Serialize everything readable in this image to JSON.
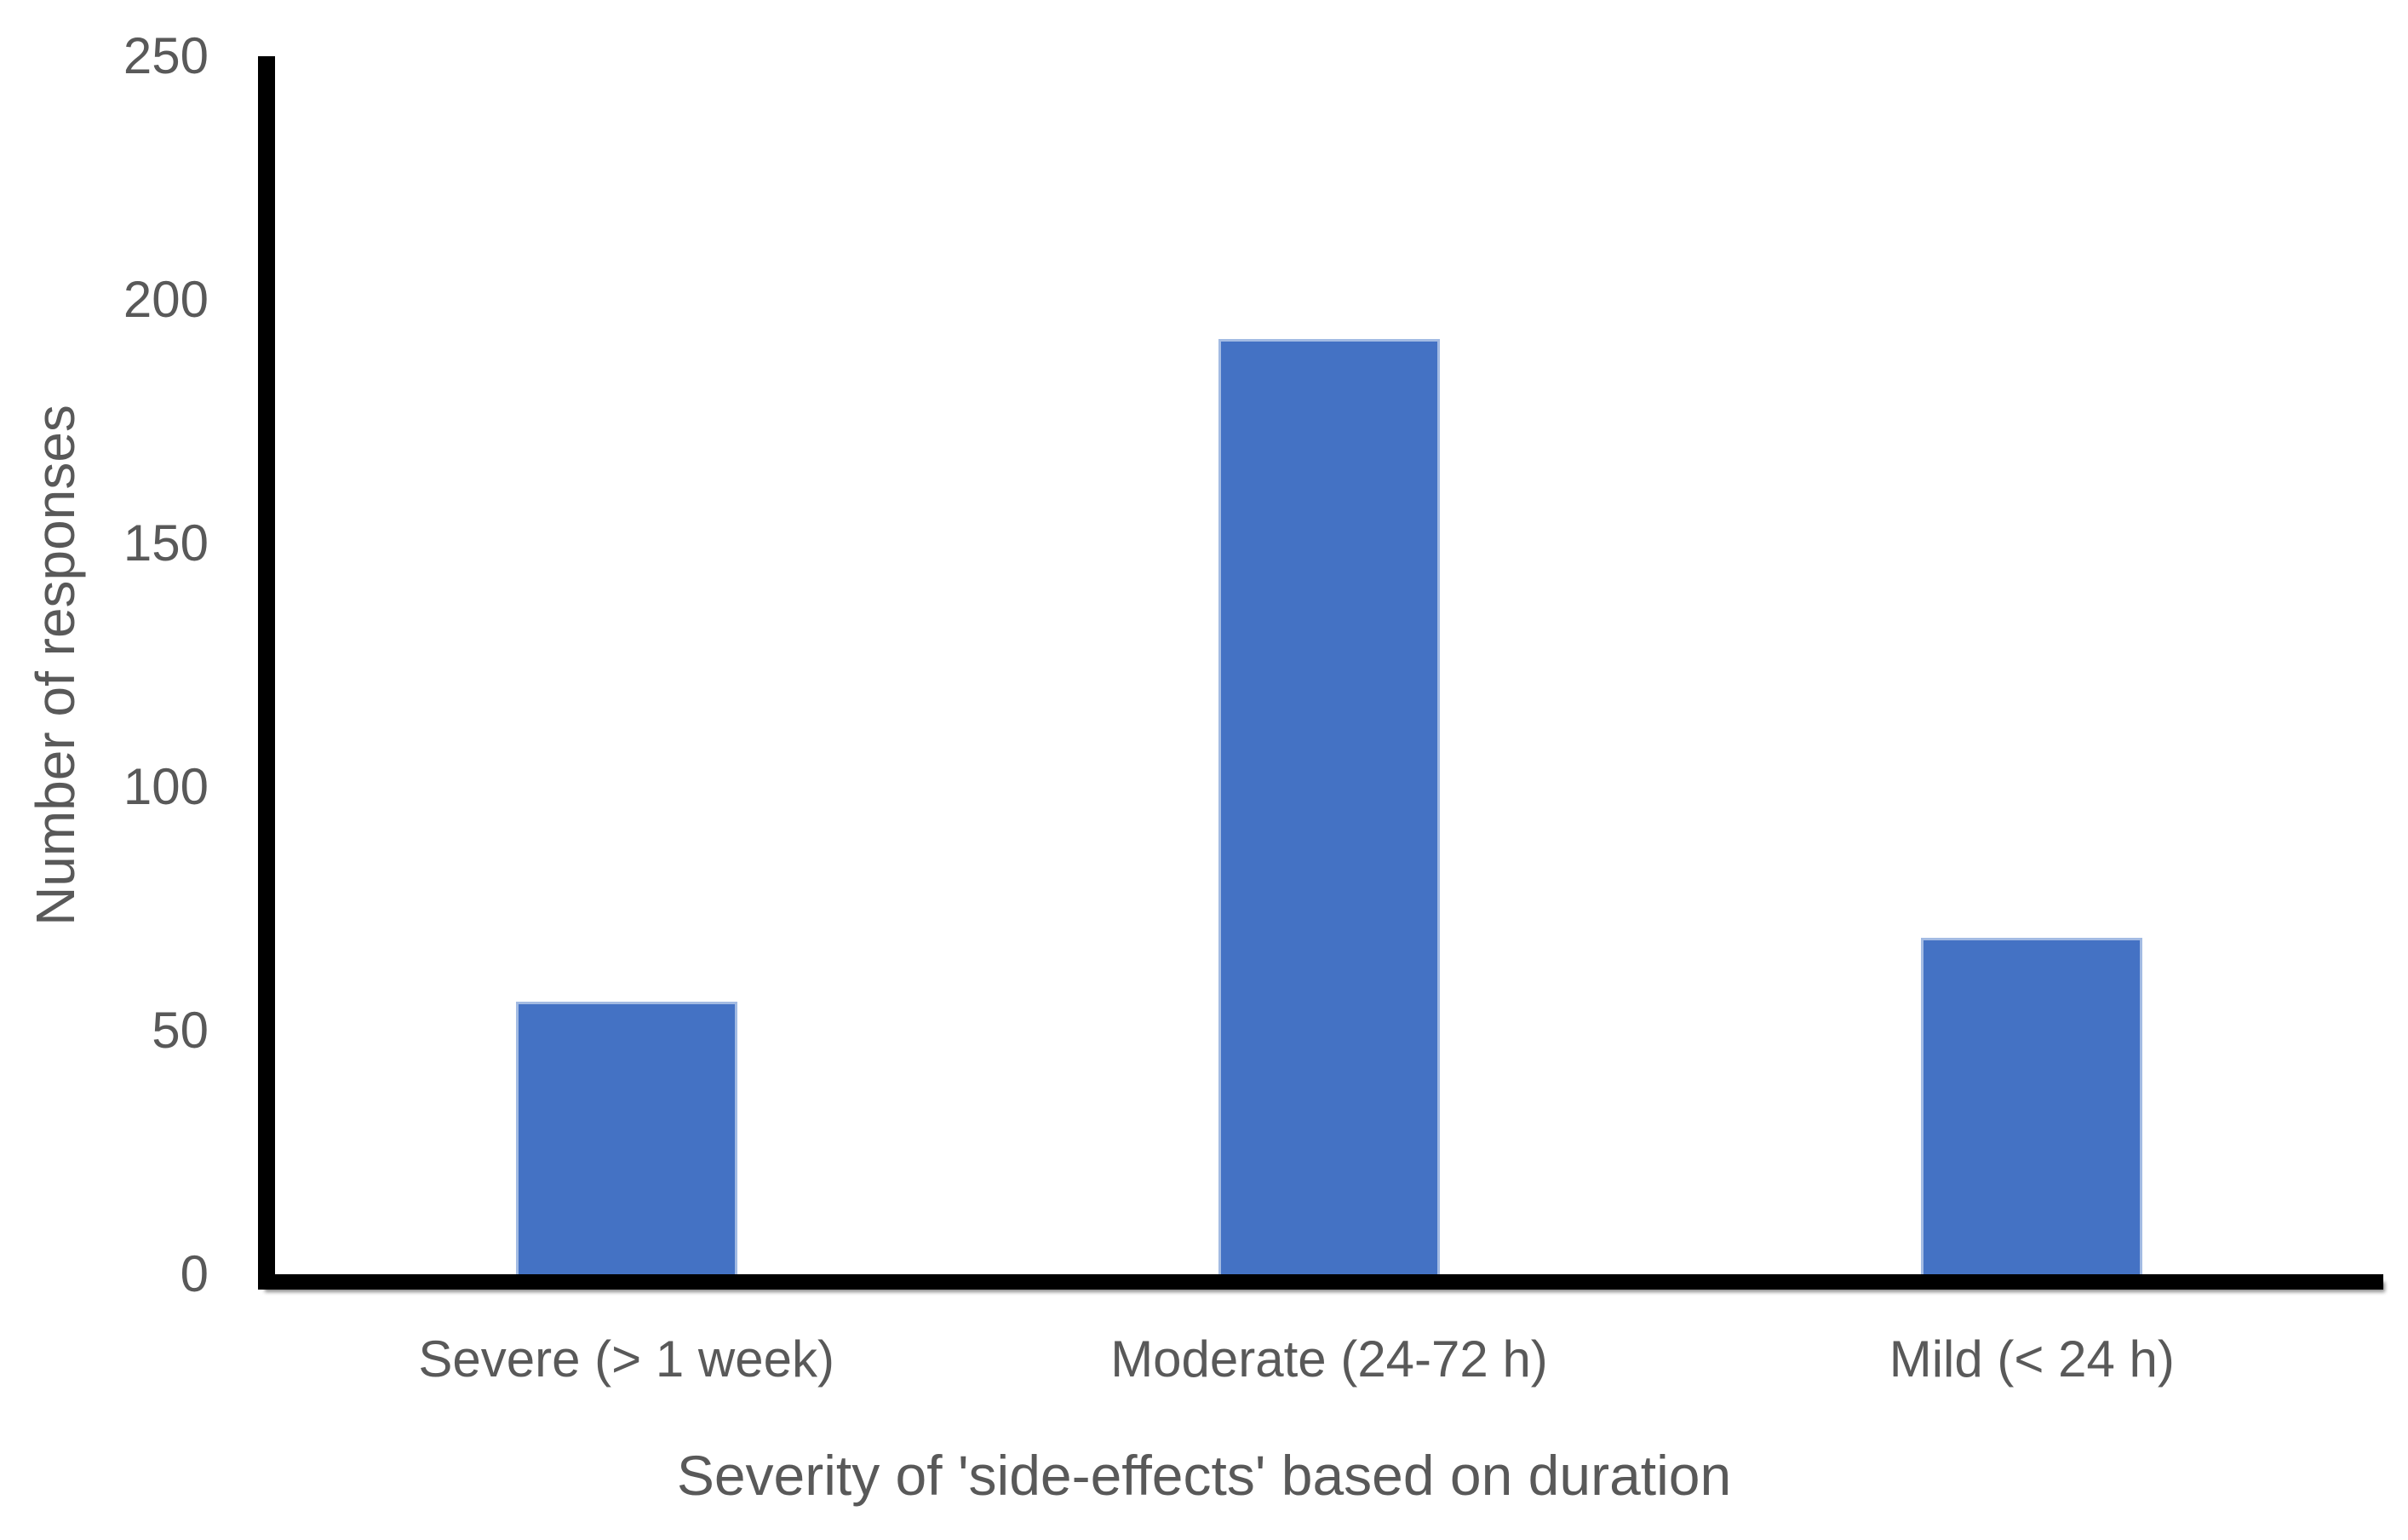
{
  "chart_data": {
    "type": "bar",
    "title": "",
    "xlabel": "Severity of 'side-effects' based on duration",
    "ylabel": "Number of responses",
    "categories": [
      "Severe (> 1 week)",
      "Moderate (24-72 h)",
      "Mild (< 24 h)"
    ],
    "values": [
      56,
      192,
      69
    ],
    "ylim": [
      0,
      250
    ],
    "yticks": [
      0,
      50,
      100,
      150,
      200,
      250
    ],
    "grid": false,
    "legend_position": "none",
    "bar_color": "#4472C4",
    "bar_border_color": "#A3BBE3",
    "axis_color": "#000000",
    "text_color": "#595959",
    "background_color": "#FFFFFF"
  }
}
